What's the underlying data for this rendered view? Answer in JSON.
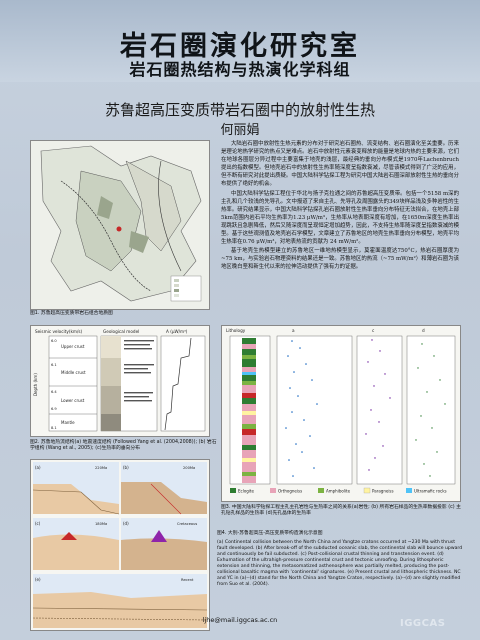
{
  "header": {
    "title": "岩石圈演化研究室",
    "subtitle": "岩石圈热结构与热演化学科组"
  },
  "paper": {
    "title": "苏鲁超高压变质带岩石圈中的放射性生热",
    "author": "何丽娟",
    "abstract_p1": "大陆岩石圈中放射性生热元素的分布对于研究岩石圈热、流变结构、岩石圈演化至关重要。历来是理论地热学研究的热点又是难点。岩石中放射性元素衰变释放的能量是地球内热的主要来源，它们在地球各圈层分异过程中主要富集于地壳的浅层，最经典的垂向分布模式是1970年Lachenbruch提出的指数模型。但地壳岩石中的放射性生热率随深度呈指数衰减，尽管该模式得到了广泛的应用，但不断有研究对此提出质疑。中国大陆科学钻探工程为研究中国大陆岩石圈深部放射性生热的垂向分布提供了绝好的机会。",
    "abstract_p2": "中国大陆科学钻探工程位于华北与扬子克拉通之间的苏鲁超高压变质带。包括一个5158 m深的主孔和几个较浅的先导孔。文中报道了来自主孔、先导孔及周围露头的349块样品浅及多种岩性的生热率。研究结果显示，中国大陆科学钻探孔岩石圈放射性生热率垂向分布特征无法拟合，在地壳上部5km范围内岩石平均生热率为1.23 μW/m³，生热率从地表朝深度有增加，在1650m深度生热率出现跳跃且急剧降低，然后又随深度而呈现恒定增加趋势，因此，不支持生热率随深度呈指数衰减的模型。基于这些观测值及地壳岩石学模型，文章建立了苏鲁地区的地壳生热率垂向分布模型，地壳平均生热率在0.76 μW/m³，对地表热流的贡献为 24 mW/m²。",
    "abstract_p3": "基于地壳生热模型建立的苏鲁地区一维地热模型显示，莫霍面温度达750°C，热岩石圈厚度为~75 km，与实验岩石物理资料的结果还是一致。苏鲁地区的热流（~75 mW/m²）和薄岩石圈为该地区晚白垩和新生代以来的拉伸活动提供了强有力的证据。"
  },
  "fig1": {
    "caption": "图1. 苏鲁超高压变质带岩石组合地质图"
  },
  "fig2": {
    "title_left": "Seismic velocity(km/s)",
    "title_mid": "Geological model",
    "title_right": "A (μW/m³)",
    "layers": [
      "Upper crust",
      "Middle crust",
      "Lower crust",
      "Mantle"
    ],
    "velocities": [
      "6.0",
      "6.1",
      "6.4",
      "6.9",
      "8.1"
    ],
    "ylabel": "Depth (km)",
    "caption": "图2. 苏鲁地热流结构(a) 地震速度结构 (Followed Yang et al. (2004,2008)); (b) 岩石学组构 (Wang et al., 2005); (c)生热率的垂向分布"
  },
  "fig3": {
    "col_a_label": "Lithology",
    "col_b_label": "a",
    "col_c_label": "c",
    "col_d_label": "d",
    "legend": [
      "Eclogite",
      "Orthogneiss",
      "Amphibolite",
      "Paragneiss",
      "Ultramafic rocks"
    ],
    "legend_colors": [
      "#2e7d32",
      "#e8a4b8",
      "#7cb342",
      "#fff3a0",
      "#4fc3f7"
    ],
    "caption": "图3. 中国大陆科学钻探工程主孔主孔岩性与生热率之间的关系(a)岩性; (b) 所有岩石样品的生热率数据投影 (c) 主孔钻孔样品的生热率 (d)先孔晶体的生热率"
  },
  "fig4": {
    "caption": "图4. 大别-苏鲁超高压-高压变质带构造演化示意图",
    "panels": [
      "(a)",
      "(b)",
      "(c)",
      "(d)",
      "(e)"
    ],
    "times": [
      "220Ma",
      "200Ma",
      "180Ma",
      "Cretaceous",
      "Recent"
    ]
  },
  "fig5_text": "(a) Continental collision between the North China and Yangtze cratons occurred at ~230 Ma with thrust fault developed. (b) After break-off of the subducted oceanic slab, the continental slab will bounce upward and continuously be fail subducted. (c) Post-collisional crustal thinning and transtension event. (d) Exhumation of the ultrahigh-pressure continental crust and tectonic unroofing. During lithospheric extension and thinning, the metasomatized asthenosphere was partially melted, producing the post-collisional basaltic magma with 'continental' signatures. (e) Present crustal and lithospheric thickness. NC and YC in (a)--(d) stand for the North China and Yangtze Craton, respectively. (a)--(d) are slightly modified from Suo et al. (2004).",
  "email": "ljhe@mail.iggcas.ac.cn",
  "logo": "IGGCAS"
}
